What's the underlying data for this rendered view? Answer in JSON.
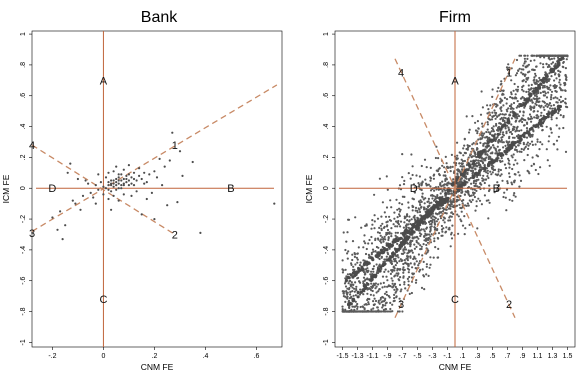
{
  "chart_data": [
    {
      "type": "scatter",
      "title": "Bank",
      "xlabel": "CNM FE",
      "ylabel": "ICM FE",
      "xlim": [
        -0.28,
        0.7
      ],
      "ylim": [
        -1.03,
        1.02
      ],
      "xticks": [
        -0.2,
        0,
        0.2,
        0.4,
        0.6
      ],
      "xtick_labels": [
        "-.2",
        "0",
        ".2",
        ".4",
        ".6"
      ],
      "yticks": [
        -1,
        -0.8,
        -0.6,
        -0.4,
        -0.2,
        0,
        0.2,
        0.4,
        0.6,
        0.8,
        1
      ],
      "ytick_labels": [
        "-1",
        "-.8",
        "-.6",
        "-.4",
        "-.2",
        "0",
        ".2",
        ".4",
        ".6",
        ".8",
        "1"
      ],
      "reference_lines": {
        "vertical_x": 0,
        "horizontal_y": 0,
        "dashed": [
          {
            "label": "1",
            "x": [
              -0.28,
              0.68
            ],
            "y": [
              -0.28,
              0.67
            ]
          },
          {
            "label": "2",
            "x": [
              -0.28,
              0.28
            ],
            "y": [
              0.28,
              -0.3
            ]
          }
        ]
      },
      "region_labels": [
        {
          "text": "A",
          "x": 0.0,
          "y": 0.7
        },
        {
          "text": "B",
          "x": 0.5,
          "y": 0.0
        },
        {
          "text": "C",
          "x": 0.0,
          "y": -0.72
        },
        {
          "text": "D",
          "x": -0.2,
          "y": 0.0
        }
      ],
      "line_labels": [
        {
          "text": "1",
          "x": 0.28,
          "y": 0.28
        },
        {
          "text": "2",
          "x": 0.28,
          "y": -0.3
        },
        {
          "text": "3",
          "x": -0.28,
          "y": -0.29
        },
        {
          "text": "4",
          "x": -0.28,
          "y": 0.28
        }
      ],
      "points": [
        [
          0.03,
          0.02
        ],
        [
          0.05,
          0.04
        ],
        [
          0.07,
          0.05
        ],
        [
          0.04,
          0.01
        ],
        [
          0.02,
          -0.01
        ],
        [
          0.06,
          0.03
        ],
        [
          0.08,
          0.06
        ],
        [
          0.01,
          0.0
        ],
        [
          0.09,
          0.04
        ],
        [
          0.05,
          0.02
        ],
        [
          0.03,
          0.03
        ],
        [
          0.07,
          0.02
        ],
        [
          0.06,
          0.07
        ],
        [
          0.04,
          0.05
        ],
        [
          0.1,
          0.05
        ],
        [
          0.02,
          0.02
        ],
        [
          0.08,
          0.02
        ],
        [
          0.05,
          0.06
        ],
        [
          0.11,
          0.07
        ],
        [
          0.03,
          -0.02
        ],
        [
          0.0,
          0.01
        ],
        [
          0.06,
          0.0
        ],
        [
          0.09,
          0.08
        ],
        [
          0.12,
          0.06
        ],
        [
          0.04,
          0.03
        ],
        [
          0.07,
          0.09
        ],
        [
          0.13,
          0.05
        ],
        [
          0.02,
          0.04
        ],
        [
          0.05,
          -0.01
        ],
        [
          0.08,
          0.03
        ],
        [
          0.1,
          0.02
        ],
        [
          -0.02,
          -0.01
        ],
        [
          0.14,
          0.08
        ],
        [
          0.06,
          0.05
        ],
        [
          0.03,
          0.05
        ],
        [
          0.15,
          0.06
        ],
        [
          0.11,
          0.03
        ],
        [
          -0.03,
          0.02
        ],
        [
          0.07,
          0.0
        ],
        [
          0.09,
          0.06
        ],
        [
          -0.05,
          -0.03
        ],
        [
          0.0,
          -0.04
        ],
        [
          0.16,
          0.1
        ],
        [
          0.12,
          0.1
        ],
        [
          0.17,
          0.04
        ],
        [
          -0.06,
          0.03
        ],
        [
          0.04,
          0.11
        ],
        [
          0.18,
          0.09
        ],
        [
          -0.04,
          -0.06
        ],
        [
          0.02,
          -0.07
        ],
        [
          0.2,
          0.11
        ],
        [
          0.08,
          0.12
        ],
        [
          0.13,
          -0.02
        ],
        [
          -0.08,
          -0.05
        ],
        [
          0.21,
          0.07
        ],
        [
          -0.1,
          0.06
        ],
        [
          0.06,
          -0.08
        ],
        [
          0.19,
          -0.03
        ],
        [
          0.24,
          0.14
        ],
        [
          -0.12,
          -0.08
        ],
        [
          0.1,
          0.15
        ],
        [
          -0.14,
          0.1
        ],
        [
          -0.09,
          -0.14
        ],
        [
          0.03,
          -0.14
        ],
        [
          0.22,
          0.19
        ],
        [
          -0.17,
          -0.15
        ],
        [
          0.26,
          0.18
        ],
        [
          0.27,
          0.36
        ],
        [
          0.3,
          0.24
        ],
        [
          0.35,
          0.17
        ],
        [
          -0.13,
          0.16
        ],
        [
          -0.2,
          -0.19
        ],
        [
          -0.15,
          -0.24
        ],
        [
          0.25,
          -0.11
        ],
        [
          0.15,
          -0.17
        ],
        [
          0.2,
          -0.2
        ],
        [
          -0.18,
          -0.27
        ],
        [
          -0.16,
          -0.33
        ],
        [
          0.38,
          -0.29
        ],
        [
          0.67,
          -0.1
        ],
        [
          0.02,
          0.1
        ],
        [
          0.11,
          -0.05
        ],
        [
          -0.07,
          0.05
        ],
        [
          0.05,
          0.14
        ],
        [
          0.17,
          -0.07
        ],
        [
          -0.11,
          -0.1
        ],
        [
          0.31,
          0.08
        ],
        [
          0.14,
          0.13
        ],
        [
          -0.02,
          0.09
        ],
        [
          0.29,
          -0.09
        ],
        [
          0.23,
          0.02
        ],
        [
          -0.03,
          -0.1
        ],
        [
          0.01,
          0.07
        ],
        [
          0.12,
          0.02
        ],
        [
          0.08,
          -0.04
        ],
        [
          0.04,
          -0.05
        ],
        [
          0.16,
          0.03
        ],
        [
          -0.01,
          0.04
        ],
        [
          0.06,
          0.09
        ],
        [
          0.1,
          0.09
        ]
      ]
    },
    {
      "type": "scatter",
      "title": "Firm",
      "xlabel": "CNM FE",
      "ylabel": "ICM FE",
      "xlim": [
        -1.6,
        1.6
      ],
      "ylim": [
        -1.03,
        1.02
      ],
      "xticks": [
        -1.5,
        -1.3,
        -1.1,
        -0.9,
        -0.7,
        -0.5,
        -0.3,
        -0.1,
        0.1,
        0.3,
        0.5,
        0.7,
        0.9,
        1.1,
        1.3,
        1.5
      ],
      "xtick_labels": [
        "-1.5",
        "-1.3",
        "-1.1",
        "-.9",
        "-.7",
        "-.5",
        "-.3",
        "-.1",
        ".1",
        ".3",
        ".5",
        ".7",
        ".9",
        "1.1",
        "1.3",
        "1.5"
      ],
      "yticks": [
        -1,
        -0.8,
        -0.6,
        -0.4,
        -0.2,
        0,
        0.2,
        0.4,
        0.6,
        0.8,
        1
      ],
      "ytick_labels": [
        "-1",
        "-.8",
        "-.6",
        "-.4",
        "-.2",
        "0",
        ".2",
        ".4",
        ".6",
        ".8",
        "1"
      ],
      "reference_lines": {
        "vertical_x": 0,
        "horizontal_y": 0,
        "dashed": [
          {
            "label": "1",
            "x": [
              -0.8,
              0.8
            ],
            "y": [
              -0.84,
              0.84
            ]
          },
          {
            "label": "2",
            "x": [
              -0.8,
              0.8
            ],
            "y": [
              0.84,
              -0.84
            ]
          }
        ]
      },
      "region_labels": [
        {
          "text": "A",
          "x": 0.0,
          "y": 0.7
        },
        {
          "text": "B",
          "x": 0.55,
          "y": 0.0
        },
        {
          "text": "C",
          "x": 0.0,
          "y": -0.72
        },
        {
          "text": "D",
          "x": -0.55,
          "y": 0.0
        }
      ],
      "line_labels": [
        {
          "text": "1",
          "x": 0.72,
          "y": 0.75
        },
        {
          "text": "2",
          "x": 0.72,
          "y": -0.75
        },
        {
          "text": "3",
          "x": -0.72,
          "y": -0.75
        },
        {
          "text": "4",
          "x": -0.72,
          "y": 0.75
        }
      ],
      "dense_cloud": {
        "center_band": {
          "x_range": [
            -1.5,
            1.5
          ],
          "slope": 0.55,
          "spread": 0.22
        },
        "upper_edge": {
          "x": [
            -1.45,
            1.45
          ],
          "y": [
            -0.78,
            0.85
          ]
        },
        "lower_edge": {
          "x": [
            -1.45,
            1.45
          ],
          "y": [
            -0.6,
            0.55
          ]
        }
      }
    }
  ]
}
